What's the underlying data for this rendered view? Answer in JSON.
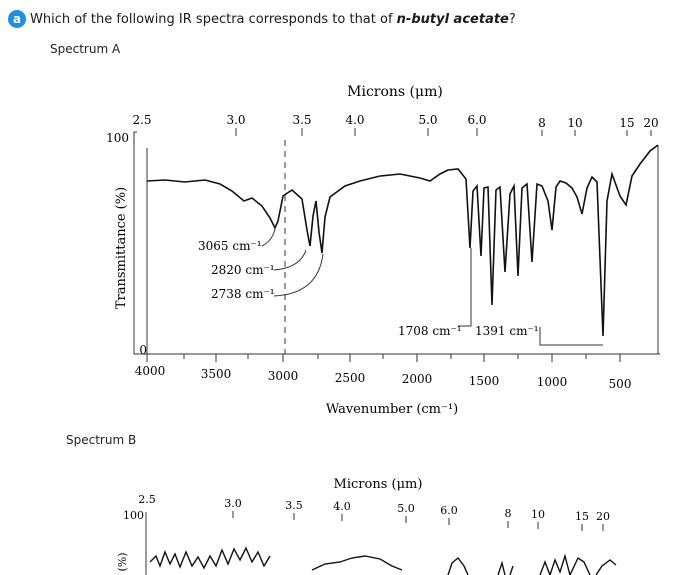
{
  "question": {
    "badge": "a",
    "text_before": "Which of the following IR spectra corresponds to that of ",
    "compound": "n-butyl acetate",
    "text_after": "?"
  },
  "spectrum_a": {
    "label": "Spectrum A",
    "microns_title": "Microns (μm)",
    "microns_ticks": [
      "2.5",
      "3.0",
      "3.5",
      "4.0",
      "5.0",
      "6.0",
      "8",
      "10",
      "15",
      "20"
    ],
    "wavenumber_title": "Wavenumber (cm⁻¹)",
    "wavenumber_ticks": [
      "4000",
      "3500",
      "3000",
      "2500",
      "2000",
      "1500",
      "1000",
      "500"
    ],
    "y_title": "Transmittance (%)",
    "y_top": "100",
    "y_bottom": "0",
    "annotations": {
      "a1": "3065 cm⁻¹",
      "a2": "2820 cm⁻¹",
      "a3": "2738 cm⁻¹",
      "a4": "1708 cm⁻¹",
      "a5": "1391 cm⁻¹"
    }
  },
  "spectrum_b": {
    "label": "Spectrum B",
    "microns_title": "Microns (μm)",
    "microns_ticks": [
      "2.5",
      "3.0",
      "3.5",
      "4.0",
      "5.0",
      "6.0",
      "8",
      "10",
      "15",
      "20"
    ],
    "y_top": "100",
    "y_title_partial": "(%)"
  }
}
